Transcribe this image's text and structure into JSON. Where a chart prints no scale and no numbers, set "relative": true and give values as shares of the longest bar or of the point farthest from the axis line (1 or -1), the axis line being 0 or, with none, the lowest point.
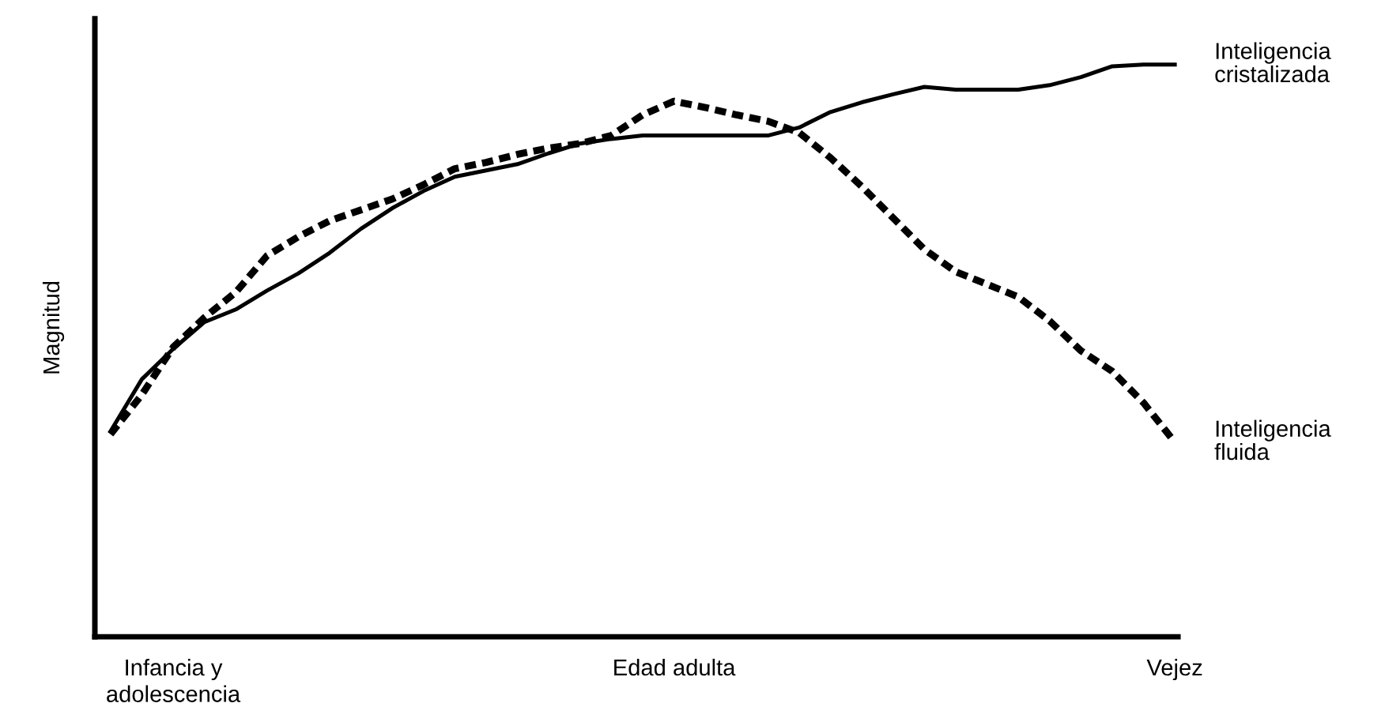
{
  "chart_data": {
    "type": "line",
    "relative": true,
    "ylabel": "Magnitud",
    "legend": false,
    "grid": false,
    "marker": "none",
    "categories": [
      null,
      null,
      "Infancia y\nadolescencia",
      null,
      null,
      null,
      null,
      null,
      null,
      null,
      null,
      null,
      null,
      null,
      null,
      null,
      null,
      null,
      "Edad adulta",
      null,
      null,
      null,
      null,
      null,
      null,
      null,
      null,
      null,
      null,
      null,
      null,
      null,
      null,
      null,
      "Vejez"
    ],
    "series": [
      {
        "name": "Inteligencia\ncristalizada",
        "color": "#000000",
        "line_style": "solid",
        "values": [
          0.359,
          0.45,
          0.503,
          0.55,
          0.572,
          0.605,
          0.635,
          0.671,
          0.713,
          0.749,
          0.779,
          0.804,
          0.815,
          0.826,
          0.845,
          0.862,
          0.87,
          0.876,
          0.876,
          0.876,
          0.876,
          0.876,
          0.89,
          0.917,
          0.934,
          0.948,
          0.961,
          0.956,
          0.956,
          0.956,
          0.964,
          0.978,
          0.997,
          1,
          1
        ]
      },
      {
        "name": "Inteligencia\nfluida",
        "color": "#000000",
        "line_style": "dashed",
        "values": [
          0.354,
          0.423,
          0.506,
          0.558,
          0.602,
          0.666,
          0.699,
          0.727,
          0.746,
          0.765,
          0.79,
          0.818,
          0.829,
          0.843,
          0.854,
          0.862,
          0.876,
          0.912,
          0.936,
          0.925,
          0.912,
          0.901,
          0.881,
          0.837,
          0.787,
          0.732,
          0.677,
          0.638,
          0.616,
          0.594,
          0.552,
          0.5,
          0.464,
          0.409,
          0.34
        ]
      }
    ]
  }
}
